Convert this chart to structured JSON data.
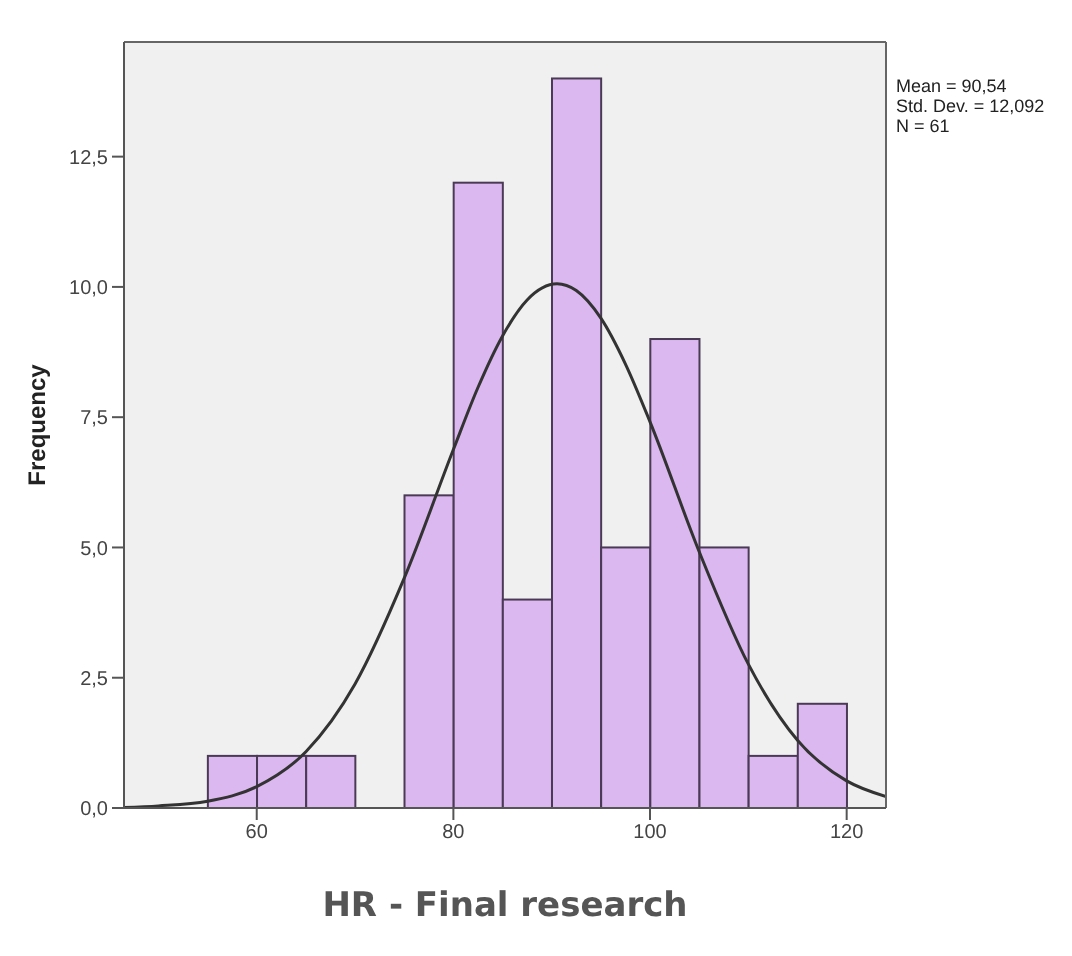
{
  "chart_data": {
    "type": "histogram",
    "xlabel": "HR - Final research",
    "ylabel": "Frequency",
    "bins": [
      55,
      60,
      65,
      70,
      75,
      80,
      85,
      90,
      95,
      100,
      105,
      110,
      115,
      120
    ],
    "values": [
      1,
      1,
      1,
      0,
      6,
      12,
      4,
      14,
      5,
      9,
      5,
      1,
      2
    ],
    "color": "#dcb8f0",
    "series": [
      {
        "type": "line",
        "color": "#333333",
        "x": [
          46.5,
          50,
          55,
          60,
          65,
          70,
          75,
          80,
          82.5,
          85,
          87.5,
          90.54,
          92.5,
          95,
          97.5,
          100,
          105,
          110,
          115,
          120,
          124
        ],
        "values": [
          0.01,
          0.04,
          0.13,
          0.41,
          1.08,
          2.38,
          4.41,
          6.88,
          8.07,
          9.06,
          9.75,
          10.06,
          9.93,
          9.4,
          8.52,
          7.41,
          4.92,
          2.76,
          1.3,
          0.52,
          0.22
        ]
      }
    ],
    "xlim": [
      46.5,
      124
    ],
    "xticks": [
      60,
      80,
      100,
      120
    ],
    "ylim": [
      0,
      14.7
    ],
    "yticks": [
      {
        "value": 0,
        "label": "0,0"
      },
      {
        "value": 2.5,
        "label": "2,5"
      },
      {
        "value": 5,
        "label": "5,0"
      },
      {
        "value": 7.5,
        "label": "7,5"
      },
      {
        "value": 10,
        "label": "10,0"
      },
      {
        "value": 12.5,
        "label": "12,5"
      }
    ],
    "annotations": [
      "Mean = 90,54",
      "Std. Dev. = 12,092",
      "N = 61"
    ],
    "grid": false,
    "marker": "none",
    "line_style": "solid"
  }
}
